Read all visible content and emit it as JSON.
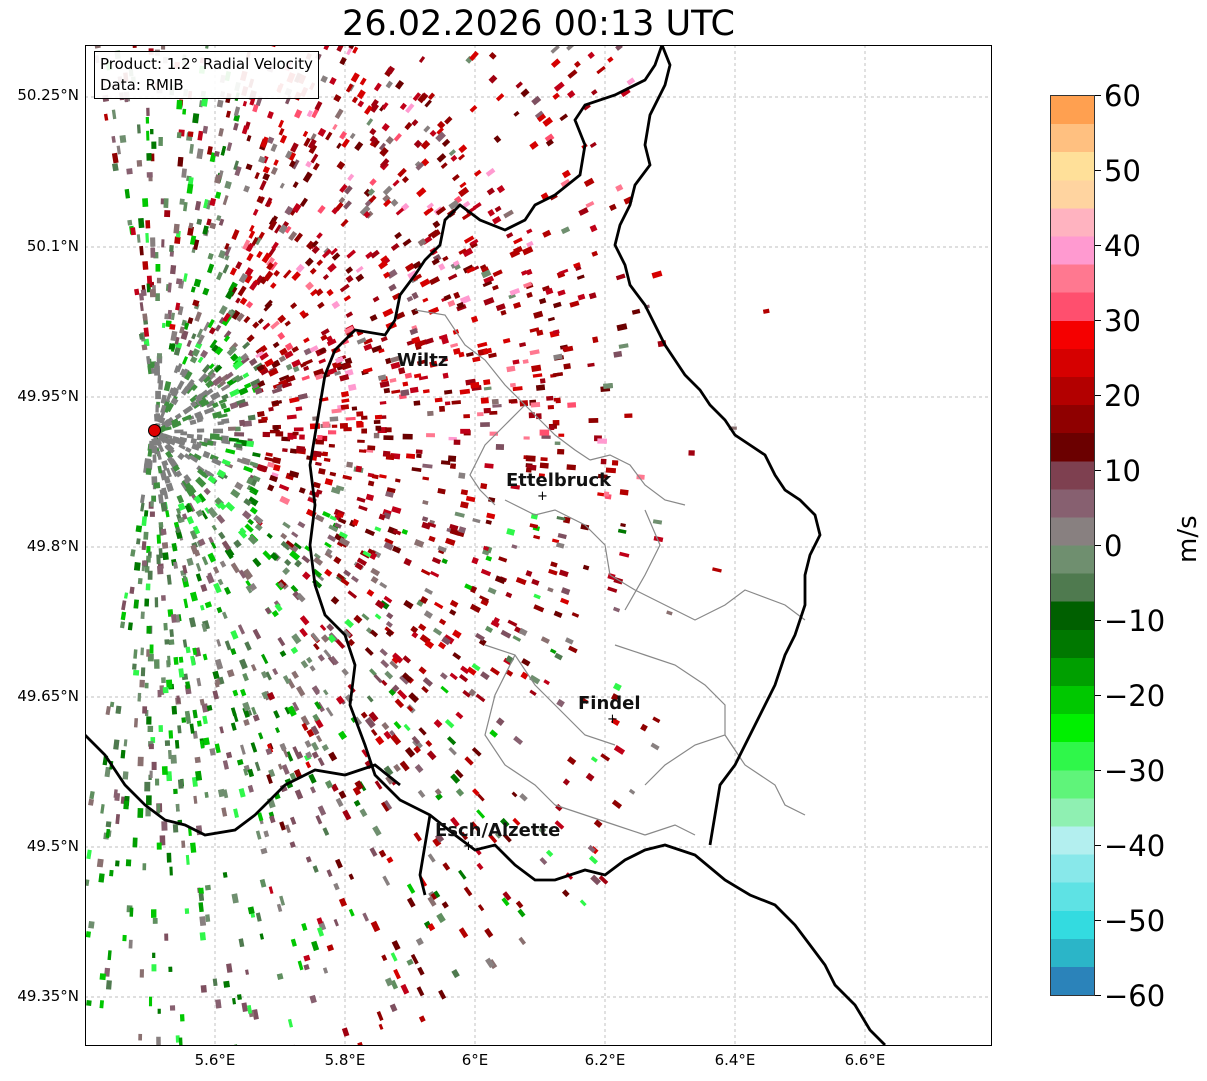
{
  "title": "26.02.2026 00:13 UTC",
  "info": {
    "product": "Product: 1.2° Radial Velocity",
    "source": "Data: RMIB"
  },
  "axes": {
    "y_ticks": [
      "50.25°N",
      "50.1°N",
      "49.95°N",
      "49.8°N",
      "49.65°N",
      "49.5°N",
      "49.35°N"
    ],
    "x_ticks": [
      "5.6°E",
      "5.8°E",
      "6°E",
      "6.2°E",
      "6.4°E",
      "6.6°E"
    ]
  },
  "cities": [
    {
      "name": "Wiltz"
    },
    {
      "name": "Ettelbruck"
    },
    {
      "name": "Findel"
    },
    {
      "name": "Esch/Alzette"
    }
  ],
  "colorbar": {
    "unit": "m/s",
    "ticks": [
      "60",
      "50",
      "40",
      "30",
      "20",
      "10",
      "0",
      "−10",
      "−20",
      "−30",
      "−40",
      "−50",
      "−60"
    ],
    "colors": [
      "#2b83ba",
      "#2bb5c8",
      "#33dbe0",
      "#5ee2e4",
      "#88e8ea",
      "#b3efef",
      "#8ff0b2",
      "#5ff47a",
      "#2ff74a",
      "#00f000",
      "#00c800",
      "#009f00",
      "#007800",
      "#006000",
      "#4f7a4f",
      "#6f8f6f",
      "#888080",
      "#876070",
      "#7e4050",
      "#6b0000",
      "#8f0000",
      "#b30000",
      "#d60000",
      "#f50000",
      "#ff4f6e",
      "#ff7890",
      "#ff9ad0",
      "#ffb3c0",
      "#ffd4a0",
      "#ffe099",
      "#ffc080",
      "#ffa050"
    ]
  }
}
